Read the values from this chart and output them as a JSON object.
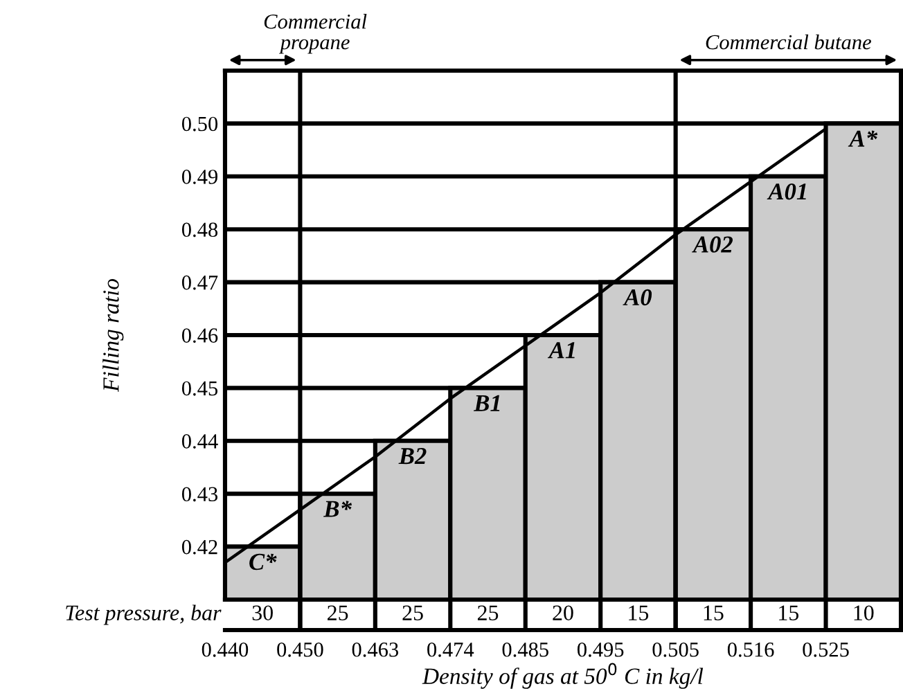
{
  "chart_data": {
    "type": "bar",
    "ylabel": "Filling ratio",
    "xlabel": "Density of gas at 50$^{0}$ C in kg/l",
    "categories": [
      "0.440",
      "0.450",
      "0.463",
      "0.474",
      "0.485",
      "0.495",
      "0.505",
      "0.516",
      "0.525"
    ],
    "series": [
      {
        "color": "#cccccc",
        "values": [
          0.42,
          0.43,
          0.44,
          0.45,
          0.46,
          0.47,
          0.48,
          0.49,
          0.5
        ]
      },
      {
        "type": "line",
        "color": "#000000",
        "values": [
          0.417,
          0.427,
          0.437,
          0.448,
          0.458,
          0.468,
          0.479,
          0.489,
          0.499
        ]
      }
    ],
    "ylim": [
      0.41,
      0.51
    ],
    "yticks": [
      {
        "value": 0.42,
        "label": "0.42"
      },
      {
        "value": 0.43,
        "label": "0.43"
      },
      {
        "value": 0.44,
        "label": "0.44"
      },
      {
        "value": 0.45,
        "label": "0.45"
      },
      {
        "value": 0.46,
        "label": "0.46"
      },
      {
        "value": 0.47,
        "label": "0.47"
      },
      {
        "value": 0.48,
        "label": "0.48"
      },
      {
        "value": 0.49,
        "label": "0.49"
      },
      {
        "value": 0.5,
        "label": "0.50"
      }
    ],
    "grid": "y",
    "ref_lines": [
      {
        "axis": "x",
        "value": "0.450",
        "label": "Commercial\npropane"
      },
      {
        "axis": "x",
        "value": "0.505",
        "label": "Commercial butane"
      }
    ],
    "annotations": [
      "Test pressure, bar",
      {
        "text": "C*",
        "x": "0.440",
        "y": 0.42
      },
      {
        "text": "B*",
        "x": "0.450",
        "y": 0.43
      },
      {
        "text": "B2",
        "x": "0.463",
        "y": 0.44
      },
      {
        "text": "B1",
        "x": "0.474",
        "y": 0.45
      },
      {
        "text": "A1",
        "x": "0.485",
        "y": 0.46
      },
      {
        "text": "A0",
        "x": "0.495",
        "y": 0.47
      },
      {
        "text": "A02",
        "x": "0.505",
        "y": 0.48
      },
      {
        "text": "A01",
        "x": "0.516",
        "y": 0.49
      },
      {
        "text": "A*",
        "x": "0.525",
        "y": 0.5
      },
      {
        "text": "30",
        "x": "0.440"
      },
      {
        "text": "25",
        "x": "0.450"
      },
      {
        "text": "25",
        "x": "0.463"
      },
      {
        "text": "25",
        "x": "0.474"
      },
      {
        "text": "20",
        "x": "0.485"
      },
      {
        "text": "15",
        "x": "0.495"
      },
      {
        "text": "15",
        "x": "0.505"
      },
      {
        "text": "15",
        "x": "0.516"
      },
      {
        "text": "10",
        "x": "0.525"
      }
    ]
  }
}
